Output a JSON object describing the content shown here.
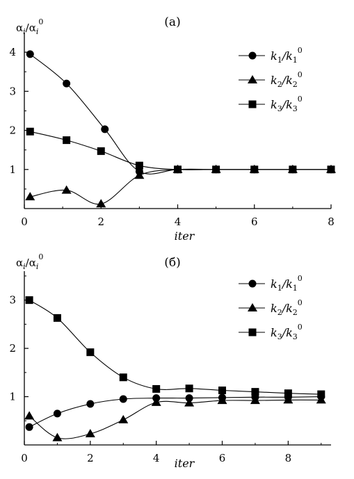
{
  "chart_data": [
    {
      "type": "line",
      "panel_label": "(a)",
      "ylabel": "αi/αi0",
      "xlabel": "iter",
      "x_ticks": [
        0,
        2,
        4,
        6,
        8
      ],
      "y_ticks": [
        1,
        2,
        3,
        4
      ],
      "xlim": [
        0,
        8
      ],
      "ylim": [
        0,
        4.5
      ],
      "legend_position": "top-right",
      "series": [
        {
          "name": "k1/k10",
          "marker": "circle",
          "x": [
            0.15,
            1.1,
            2.1,
            3.0,
            4.0,
            5.0,
            6.0,
            7.0,
            8.0
          ],
          "y": [
            3.95,
            3.2,
            2.03,
            0.95,
            1.0,
            1.0,
            1.0,
            1.0,
            1.0
          ]
        },
        {
          "name": "k2/k20",
          "marker": "triangle",
          "x": [
            0.15,
            1.1,
            2.0,
            3.0,
            4.0,
            5.0,
            6.0,
            7.0,
            8.0
          ],
          "y": [
            0.3,
            0.47,
            0.12,
            0.85,
            1.0,
            1.0,
            1.0,
            1.0,
            1.0
          ]
        },
        {
          "name": "k3/k30",
          "marker": "square",
          "x": [
            0.15,
            1.1,
            2.0,
            3.0,
            4.0,
            5.0,
            6.0,
            7.0,
            8.0
          ],
          "y": [
            1.97,
            1.75,
            1.47,
            1.1,
            1.0,
            1.0,
            1.0,
            1.0,
            1.0
          ]
        }
      ]
    },
    {
      "type": "line",
      "panel_label": "(б)",
      "ylabel": "αi/αi0",
      "xlabel": "iter",
      "x_ticks": [
        0,
        2,
        4,
        6,
        8
      ],
      "y_ticks": [
        1,
        2,
        3
      ],
      "xlim": [
        0,
        9.3
      ],
      "ylim": [
        0,
        3.6
      ],
      "legend_position": "top-right",
      "series": [
        {
          "name": "k1/k10",
          "marker": "circle",
          "x": [
            0.15,
            1.0,
            2.0,
            3.0,
            4.0,
            5.0,
            6.0,
            7.0,
            8.0,
            9.0
          ],
          "y": [
            0.37,
            0.65,
            0.85,
            0.95,
            0.97,
            0.97,
            0.98,
            0.99,
            0.99,
            1.0
          ]
        },
        {
          "name": "k2/k20",
          "marker": "triangle",
          "x": [
            0.15,
            1.0,
            2.0,
            3.0,
            4.0,
            5.0,
            6.0,
            7.0,
            8.0,
            9.0
          ],
          "y": [
            0.6,
            0.15,
            0.23,
            0.52,
            0.88,
            0.87,
            0.92,
            0.92,
            0.93,
            0.93
          ]
        },
        {
          "name": "k3/k30",
          "marker": "square",
          "x": [
            0.15,
            1.0,
            2.0,
            3.0,
            4.0,
            5.0,
            6.0,
            7.0,
            8.0,
            9.0
          ],
          "y": [
            3.0,
            2.63,
            1.92,
            1.4,
            1.16,
            1.17,
            1.13,
            1.1,
            1.07,
            1.05
          ]
        }
      ]
    }
  ]
}
